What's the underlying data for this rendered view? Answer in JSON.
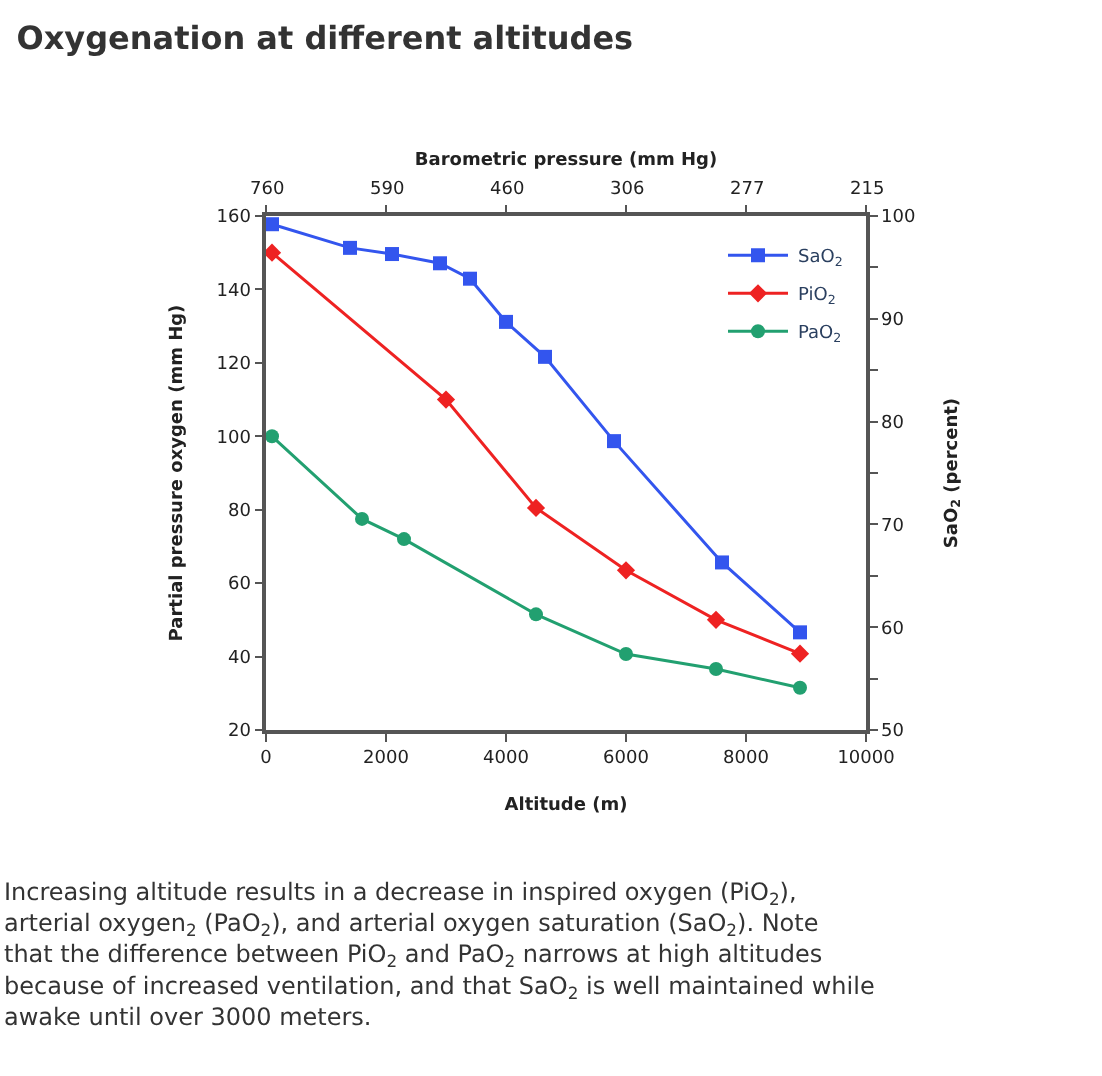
{
  "chart_data": {
    "type": "line",
    "title": "Oxygenation at different altitudes",
    "xlabel": "Altitude (m)",
    "ylabel": "Partial pressure oxygen (mm Hg)",
    "y2label": "SaO$_{2}$ (percent)",
    "x2label": "Barometric pressure (mm Hg)",
    "xlim": [
      0,
      10000
    ],
    "xticks": [
      0,
      2000,
      4000,
      6000,
      8000,
      10000
    ],
    "ylim": [
      20,
      160
    ],
    "yticks": [
      20,
      40,
      60,
      80,
      100,
      120,
      140,
      160
    ],
    "y2lim": [
      50,
      100
    ],
    "y2ticks": [
      50,
      {
        "value": 55,
        "label": null
      },
      60,
      {
        "value": 65,
        "label": null
      },
      70,
      {
        "value": 75,
        "label": null
      },
      80,
      {
        "value": 85,
        "label": null
      },
      90,
      {
        "value": 95,
        "label": null
      },
      100
    ],
    "legend": "top right",
    "series": [
      {
        "name": "SaO$_{2}$",
        "color": "#3355ee",
        "axis": "y2",
        "marker": "square",
        "x": [
          100,
          1400,
          2100,
          2900,
          3400,
          4000,
          4650,
          5800,
          7600,
          8900
        ],
        "values": [
          99.2,
          96.9,
          96.3,
          95.4,
          93.9,
          89.7,
          86.3,
          78.1,
          66.3,
          59.5
        ]
      },
      {
        "name": "PiO$_{2}$",
        "color": "#ee2222",
        "marker": "diamond",
        "x": [
          100,
          3000,
          4500,
          6000,
          7500,
          8900
        ],
        "values": [
          150,
          110,
          80.5,
          63.5,
          50,
          40.8
        ]
      },
      {
        "name": "PaO$_{2}$",
        "color": "#22a070",
        "marker": "circle",
        "x": [
          100,
          1600,
          2300,
          4500,
          6000,
          7500,
          8900
        ],
        "values": [
          100,
          77.5,
          72,
          51.5,
          40.7,
          36.6,
          31.5
        ]
      }
    ],
    "annotations": [
      "760",
      "590",
      "460",
      "306",
      "277",
      "215",
      "Increasing altitude results in a decrease in inspired oxygen (PiO$_{2}$), arterial oxygen$_{2}$ (PaO$_{2}$), and arterial oxygen saturation (SaO$_{2}$). Note that the difference between PiO$_{2}$ and PaO$_{2}$ narrows at high altitudes because of increased ventilation, and that SaO$_{2}$ is well maintained while awake until over 3000 meters."
    ]
  }
}
